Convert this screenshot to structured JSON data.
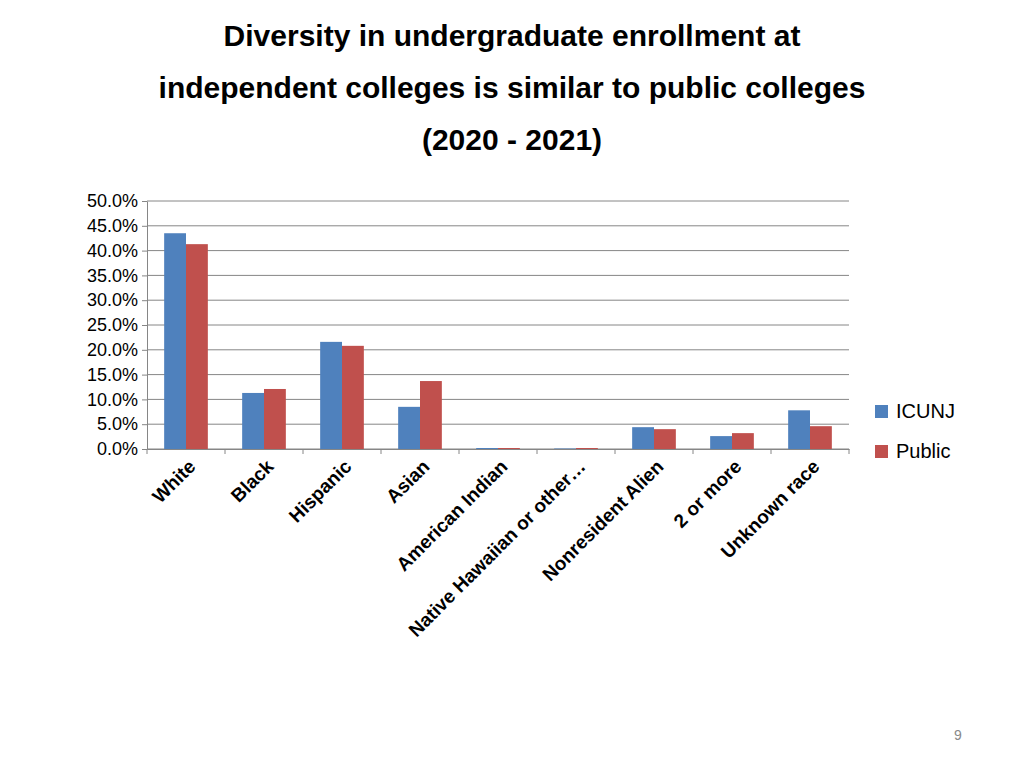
{
  "chart_data": {
    "type": "bar",
    "title": "Diversity in undergraduate enrollment at\nindependent colleges is similar to public colleges\n(2020 - 2021)",
    "categories": [
      "White",
      "Black",
      "Hispanic",
      "Asian",
      "American Indian",
      "Native Hawaiian or other…",
      "Nonresident Alien",
      "2 or more",
      "Unknown race"
    ],
    "series": [
      {
        "name": "ICUNJ",
        "color": "#4f81bd",
        "values": [
          43.5,
          11.3,
          21.6,
          8.5,
          0.2,
          0.1,
          4.4,
          2.6,
          7.8
        ]
      },
      {
        "name": "Public",
        "color": "#c0504d",
        "values": [
          41.3,
          12.1,
          20.8,
          13.7,
          0.2,
          0.2,
          4.0,
          3.2,
          4.6
        ]
      }
    ],
    "ylim": [
      0,
      50
    ],
    "yticks": [
      {
        "value": 0,
        "label": "0.0%"
      },
      {
        "value": 5,
        "label": "5.0%"
      },
      {
        "value": 10,
        "label": "10.0%"
      },
      {
        "value": 15,
        "label": "15.0%"
      },
      {
        "value": 20,
        "label": "20.0%"
      },
      {
        "value": 25,
        "label": "25.0%"
      },
      {
        "value": 30,
        "label": "30.0%"
      },
      {
        "value": 35,
        "label": "35.0%"
      },
      {
        "value": 40,
        "label": "40.0%"
      },
      {
        "value": 45,
        "label": "45.0%"
      },
      {
        "value": 50,
        "label": "50.0%"
      }
    ],
    "grid": true,
    "legend": "right"
  },
  "page_number": "9"
}
